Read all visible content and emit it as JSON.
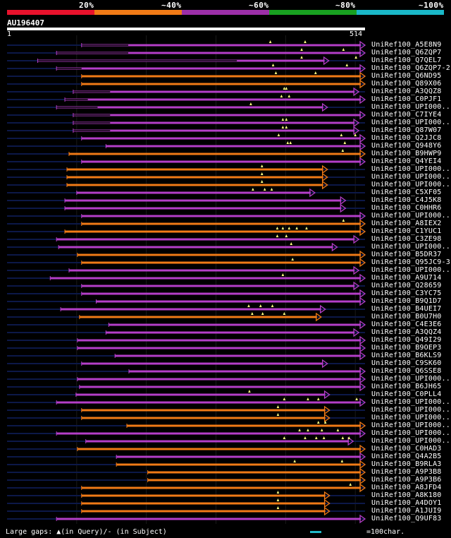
{
  "legend": [
    {
      "label": "20%",
      "color": "#e8122c"
    },
    {
      "label": "~40%",
      "color": "#f07a16"
    },
    {
      "label": "~60%",
      "color": "#9c2fa8"
    },
    {
      "label": "~80%",
      "color": "#18a020"
    },
    {
      "label": "~100%",
      "color": "#1ab8c8"
    }
  ],
  "query": {
    "id": "AU196407",
    "start": "1",
    "end": "514",
    "length": 514
  },
  "colors": {
    "purple": "#b43ec8",
    "orange": "#f07a16",
    "track": "#0c1848",
    "tri": "#ffff80",
    "grid": "#1a1a1a"
  },
  "rows": [
    {
      "label": "UniRef100_A5E8N9",
      "color": "purple",
      "s": 107,
      "e": 514,
      "gaps": [
        [
          107,
          174
        ]
      ],
      "tri": [
        378,
        428
      ]
    },
    {
      "label": "UniRef100_Q6ZQP7",
      "color": "purple",
      "s": 71,
      "e": 514,
      "gaps": [
        [
          71,
          174
        ]
      ],
      "tri": [
        423,
        483
      ]
    },
    {
      "label": "UniRef100_Q7QEL7",
      "color": "purple",
      "s": 44,
      "e": 462,
      "gaps": [
        [
          44,
          330
        ]
      ],
      "tri": [
        423,
        501
      ]
    },
    {
      "label": "UniRef100_Q6ZQP7-2",
      "color": "purple",
      "s": 71,
      "e": 514,
      "gaps": [
        [
          71,
          107
        ]
      ],
      "tri": [
        382,
        488
      ]
    },
    {
      "label": "UniRef100_Q6ND95",
      "color": "orange",
      "s": 107,
      "e": 514,
      "gaps": [],
      "tri": [
        386,
        443
      ]
    },
    {
      "label": "UniRef100_Q89X06",
      "color": "orange",
      "s": 107,
      "e": 514,
      "gaps": [],
      "tri": []
    },
    {
      "label": "UniRef100_A3QQZ8",
      "color": "purple",
      "s": 95,
      "e": 505,
      "gaps": [
        [
          95,
          148
        ]
      ],
      "tri": [
        398,
        401
      ]
    },
    {
      "label": "UniRef100_C0PJF1",
      "color": "purple",
      "s": 83,
      "e": 514,
      "gaps": [
        [
          83,
          116
        ]
      ],
      "tri": [
        394,
        405
      ]
    },
    {
      "label": "UniRef100_UPI000..",
      "color": "purple",
      "s": 71,
      "e": 460,
      "gaps": [
        [
          71,
          130
        ]
      ],
      "tri": [
        350
      ]
    },
    {
      "label": "UniRef100_C7IYE4",
      "color": "purple",
      "s": 95,
      "e": 514,
      "gaps": [
        [
          95,
          148
        ]
      ],
      "tri": []
    },
    {
      "label": "UniRef100_UPI000..",
      "color": "purple",
      "s": 95,
      "e": 505,
      "gaps": [
        [
          95,
          148
        ]
      ],
      "tri": [
        396,
        401
      ]
    },
    {
      "label": "UniRef100_Q87W07",
      "color": "purple",
      "s": 95,
      "e": 505,
      "gaps": [
        [
          95,
          148
        ]
      ],
      "tri": [
        396,
        401
      ]
    },
    {
      "label": "UniRef100_Q2JJC8",
      "color": "purple",
      "s": 107,
      "e": 514,
      "gaps": [],
      "tri": [
        390,
        480,
        500
      ]
    },
    {
      "label": "UniRef100_Q948Y6",
      "color": "purple",
      "s": 142,
      "e": 514,
      "gaps": [],
      "tri": [
        403,
        407,
        485
      ]
    },
    {
      "label": "UniRef100_B9HWP9",
      "color": "orange",
      "s": 89,
      "e": 514,
      "gaps": [],
      "tri": [
        482
      ]
    },
    {
      "label": "UniRef100_Q4YEI4",
      "color": "purple",
      "s": 107,
      "e": 514,
      "gaps": [],
      "tri": []
    },
    {
      "label": "UniRef100_UPI000..",
      "color": "orange",
      "s": 86,
      "e": 460,
      "gaps": [],
      "tri": [
        366
      ]
    },
    {
      "label": "UniRef100_UPI000..",
      "color": "orange",
      "s": 86,
      "e": 460,
      "gaps": [],
      "tri": [
        366
      ]
    },
    {
      "label": "UniRef100_UPI000..",
      "color": "orange",
      "s": 86,
      "e": 460,
      "gaps": [],
      "tri": [
        366
      ]
    },
    {
      "label": "UniRef100_C5XF05",
      "color": "purple",
      "s": 100,
      "e": 442,
      "gaps": [],
      "tri": [
        353,
        370,
        380
      ]
    },
    {
      "label": "UniRef100_C4J5K8",
      "color": "purple",
      "s": 83,
      "e": 486,
      "gaps": [],
      "tri": []
    },
    {
      "label": "UniRef100_C0HHR6",
      "color": "purple",
      "s": 83,
      "e": 486,
      "gaps": [],
      "tri": []
    },
    {
      "label": "UniRef100_UPI000..",
      "color": "purple",
      "s": 107,
      "e": 514,
      "gaps": [],
      "tri": []
    },
    {
      "label": "UniRef100_A8IEX2",
      "color": "orange",
      "s": 107,
      "e": 514,
      "gaps": [],
      "tri": [
        483
      ]
    },
    {
      "label": "UniRef100_C1YUC1",
      "color": "orange",
      "s": 83,
      "e": 514,
      "gaps": [],
      "tri": [
        388,
        396,
        405,
        416,
        430
      ]
    },
    {
      "label": "UniRef100_C3ZE98",
      "color": "purple",
      "s": 71,
      "e": 505,
      "gaps": [],
      "tri": [
        388,
        401
      ]
    },
    {
      "label": "UniRef100_UPI000..",
      "color": "purple",
      "s": 74,
      "e": 474,
      "gaps": [],
      "tri": [
        408
      ]
    },
    {
      "label": "UniRef100_B5DR37",
      "color": "orange",
      "s": 101,
      "e": 514,
      "gaps": [],
      "tri": []
    },
    {
      "label": "UniRef100_Q95JC9-3",
      "color": "orange",
      "s": 107,
      "e": 514,
      "gaps": [],
      "tri": [
        410
      ]
    },
    {
      "label": "UniRef100_UPI000..",
      "color": "purple",
      "s": 89,
      "e": 505,
      "gaps": [],
      "tri": []
    },
    {
      "label": "UniRef100_A9U714",
      "color": "purple",
      "s": 62,
      "e": 514,
      "gaps": [],
      "tri": [
        396
      ]
    },
    {
      "label": "UniRef100_Q28659",
      "color": "purple",
      "s": 107,
      "e": 505,
      "gaps": [],
      "tri": []
    },
    {
      "label": "UniRef100_C3YC75",
      "color": "purple",
      "s": 107,
      "e": 514,
      "gaps": [],
      "tri": []
    },
    {
      "label": "UniRef100_B9Q1D7",
      "color": "purple",
      "s": 128,
      "e": 514,
      "gaps": [],
      "tri": []
    },
    {
      "label": "UniRef100_B4UEI7",
      "color": "purple",
      "s": 77,
      "e": 457,
      "gaps": [],
      "tri": [
        347,
        364,
        381
      ]
    },
    {
      "label": "UniRef100_B0U7H0",
      "color": "orange",
      "s": 104,
      "e": 451,
      "gaps": [],
      "tri": [
        352,
        367,
        398
      ]
    },
    {
      "label": "UniRef100_C4E3E6",
      "color": "purple",
      "s": 146,
      "e": 514,
      "gaps": [],
      "tri": []
    },
    {
      "label": "UniRef100_A3QQZ4",
      "color": "purple",
      "s": 142,
      "e": 505,
      "gaps": [],
      "tri": []
    },
    {
      "label": "UniRef100_Q49I29",
      "color": "purple",
      "s": 101,
      "e": 514,
      "gaps": [],
      "tri": []
    },
    {
      "label": "UniRef100_B9OEP3",
      "color": "purple",
      "s": 101,
      "e": 514,
      "gaps": [],
      "tri": []
    },
    {
      "label": "UniRef100_B6KLS9",
      "color": "purple",
      "s": 155,
      "e": 514,
      "gaps": [],
      "tri": []
    },
    {
      "label": "UniRef100_C9SK60",
      "color": "purple",
      "s": 107,
      "e": 460,
      "gaps": [],
      "tri": []
    },
    {
      "label": "UniRef100_Q6SSE8",
      "color": "purple",
      "s": 175,
      "e": 514,
      "gaps": [],
      "tri": []
    },
    {
      "label": "UniRef100_UPI000..",
      "color": "purple",
      "s": 101,
      "e": 514,
      "gaps": [],
      "tri": []
    },
    {
      "label": "UniRef100_B6JH65",
      "color": "purple",
      "s": 104,
      "e": 514,
      "gaps": [],
      "tri": []
    },
    {
      "label": "UniRef100_C0PLL4",
      "color": "purple",
      "s": 99,
      "e": 463,
      "gaps": [],
      "tri": [
        348
      ]
    },
    {
      "label": "UniRef100_UPI000..",
      "color": "purple",
      "s": 71,
      "e": 514,
      "gaps": [],
      "tri": [
        398,
        432,
        447,
        502
      ]
    },
    {
      "label": "UniRef100_UPI000..",
      "color": "orange",
      "s": 107,
      "e": 463,
      "gaps": [],
      "tri": [
        389
      ]
    },
    {
      "label": "UniRef100_UPI000..",
      "color": "orange",
      "s": 107,
      "e": 463,
      "gaps": [],
      "tri": [
        389
      ]
    },
    {
      "label": "UniRef100_UPI000..",
      "color": "orange",
      "s": 172,
      "e": 514,
      "gaps": [],
      "tri": [
        447,
        457
      ]
    },
    {
      "label": "UniRef100_UPI000..",
      "color": "purple",
      "s": 71,
      "e": 514,
      "gaps": [],
      "tri": [
        420,
        432,
        452,
        475
      ]
    },
    {
      "label": "UniRef100_UPI000..",
      "color": "purple",
      "s": 113,
      "e": 497,
      "gaps": [],
      "tri": [
        398,
        428,
        444,
        455,
        482,
        491
      ]
    },
    {
      "label": "UniRef100_C0HAD3",
      "color": "orange",
      "s": 101,
      "e": 514,
      "gaps": [],
      "tri": []
    },
    {
      "label": "UniRef100_Q4A2B5",
      "color": "purple",
      "s": 157,
      "e": 514,
      "gaps": [],
      "tri": []
    },
    {
      "label": "UniRef100_B9RLA3",
      "color": "orange",
      "s": 157,
      "e": 514,
      "gaps": [],
      "tri": [
        413,
        481
      ]
    },
    {
      "label": "UniRef100_A9P3B8",
      "color": "orange",
      "s": 202,
      "e": 514,
      "gaps": [],
      "tri": []
    },
    {
      "label": "UniRef100_A9P3B6",
      "color": "orange",
      "s": 202,
      "e": 514,
      "gaps": [],
      "tri": []
    },
    {
      "label": "UniRef100_A8JFD4",
      "color": "orange",
      "s": 107,
      "e": 514,
      "gaps": [],
      "tri": [
        493
      ]
    },
    {
      "label": "UniRef100_A8K180",
      "color": "orange",
      "s": 107,
      "e": 463,
      "gaps": [],
      "tri": [
        389
      ]
    },
    {
      "label": "UniRef100_A4DOY1",
      "color": "orange",
      "s": 107,
      "e": 463,
      "gaps": [],
      "tri": [
        389
      ]
    },
    {
      "label": "UniRef100_A1JUI9",
      "color": "orange",
      "s": 107,
      "e": 463,
      "gaps": [],
      "tri": [
        389
      ]
    },
    {
      "label": "UniRef100_Q9UF83",
      "color": "purple",
      "s": 71,
      "e": 514,
      "gaps": [],
      "tri": []
    }
  ],
  "footer": {
    "gaps_text": "Large gaps: ▲(in Query)/- (in Subject)",
    "scale_text": "=100char."
  }
}
